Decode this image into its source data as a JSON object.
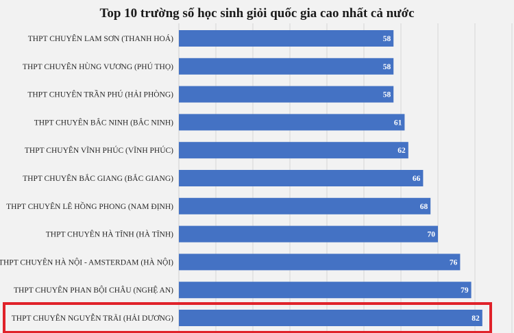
{
  "chart_data": {
    "type": "bar",
    "orientation": "horizontal",
    "title": "Top 10 trường số học sinh giỏi quốc gia cao nhất cả nước",
    "categories": [
      "THPT CHUYÊN LAM SƠN (THANH HOÁ)",
      "THPT CHUYÊN HÙNG VƯƠNG (PHÚ THỌ)",
      "THPT CHUYÊN TRẦN PHÚ (HẢI PHÒNG)",
      "THPT CHUYÊN BẮC NINH (BẮC NINH)",
      "THPT CHUYÊN VĨNH PHÚC (VĨNH PHÚC)",
      "THPT CHUYÊN BẮC GIANG (BẮC GIANG)",
      "THPT CHUYÊN LÊ HỒNG PHONG (NAM ĐỊNH)",
      "THPT CHUYÊN HÀ TĨNH (HÀ TĨNH)",
      "THPT CHUYÊN HÀ NỘI - AMSTERDAM (HÀ NỘI)",
      "THPT CHUYÊN PHAN BỘI CHÂU (NGHỆ AN)",
      "THPT CHUYÊN NGUYỄN TRÃI (HẢI DƯƠNG)"
    ],
    "values": [
      58,
      58,
      58,
      61,
      62,
      66,
      68,
      70,
      76,
      79,
      82
    ],
    "value_labels": [
      "58",
      "58",
      "58",
      "61",
      "62",
      "66",
      "68",
      "70",
      "76",
      "79",
      "82"
    ],
    "xlim": [
      0,
      90
    ],
    "grid": "vertical",
    "highlighted_category": "THPT CHUYÊN NGUYỄN TRÃI (HẢI DƯƠNG)",
    "colors": {
      "bar": "#4472c4",
      "highlight_box": "#e0222a",
      "gridline": "#d6d6d6",
      "background": "#f2f2f2"
    }
  }
}
